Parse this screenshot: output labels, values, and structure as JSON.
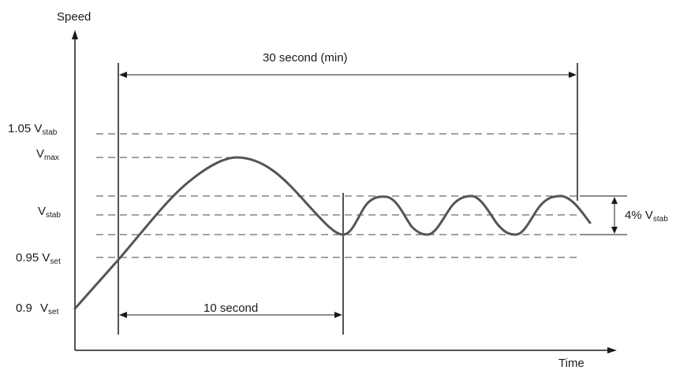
{
  "axes": {
    "y_label": "Speed",
    "x_label": "Time"
  },
  "levels": {
    "l105_coef": "1.05",
    "l105_var": "V",
    "l105_sub": "stab",
    "vmax_var": "V",
    "vmax_sub": "max",
    "vstab_var": "V",
    "vstab_sub": "stab",
    "l095_coef": "0.95",
    "l095_var": "V",
    "l095_sub": "set",
    "l09_coef": "0.9",
    "l09_var": "V",
    "l09_sub": "set"
  },
  "annotations": {
    "thirty_seconds": "30 second (min)",
    "ten_seconds": "10 second",
    "band_prefix": "4%",
    "band_var": "V",
    "band_sub": "stab"
  },
  "colors": {
    "ink": "#1a1a1a",
    "dashed": "#444444",
    "curve": "#555555"
  }
}
